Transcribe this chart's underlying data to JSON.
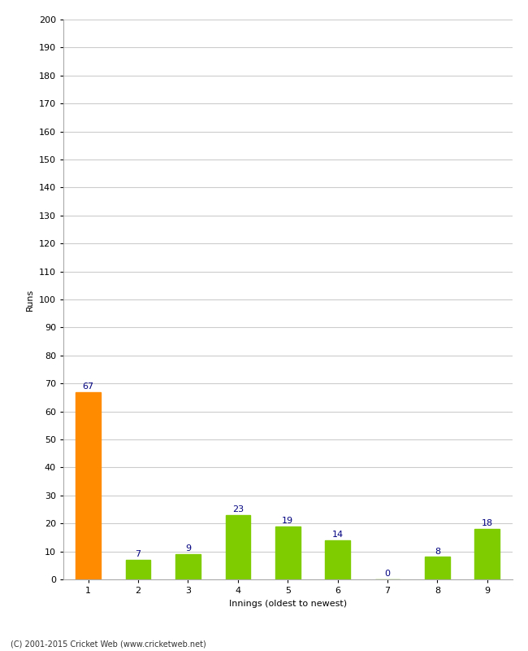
{
  "categories": [
    1,
    2,
    3,
    4,
    5,
    6,
    7,
    8,
    9
  ],
  "values": [
    67,
    7,
    9,
    23,
    19,
    14,
    0,
    8,
    18
  ],
  "bar_colors": [
    "#FF8C00",
    "#7FCC00",
    "#7FCC00",
    "#7FCC00",
    "#7FCC00",
    "#7FCC00",
    "#7FCC00",
    "#7FCC00",
    "#7FCC00"
  ],
  "xlabel": "Innings (oldest to newest)",
  "ylabel": "Runs",
  "ylim": [
    0,
    200
  ],
  "yticks": [
    0,
    10,
    20,
    30,
    40,
    50,
    60,
    70,
    80,
    90,
    100,
    110,
    120,
    130,
    140,
    150,
    160,
    170,
    180,
    190,
    200
  ],
  "label_color": "#000080",
  "label_fontsize": 8,
  "axis_label_fontsize": 8,
  "tick_fontsize": 8,
  "footer": "(C) 2001-2015 Cricket Web (www.cricketweb.net)",
  "background_color": "#ffffff",
  "grid_color": "#cccccc",
  "bar_width": 0.5
}
